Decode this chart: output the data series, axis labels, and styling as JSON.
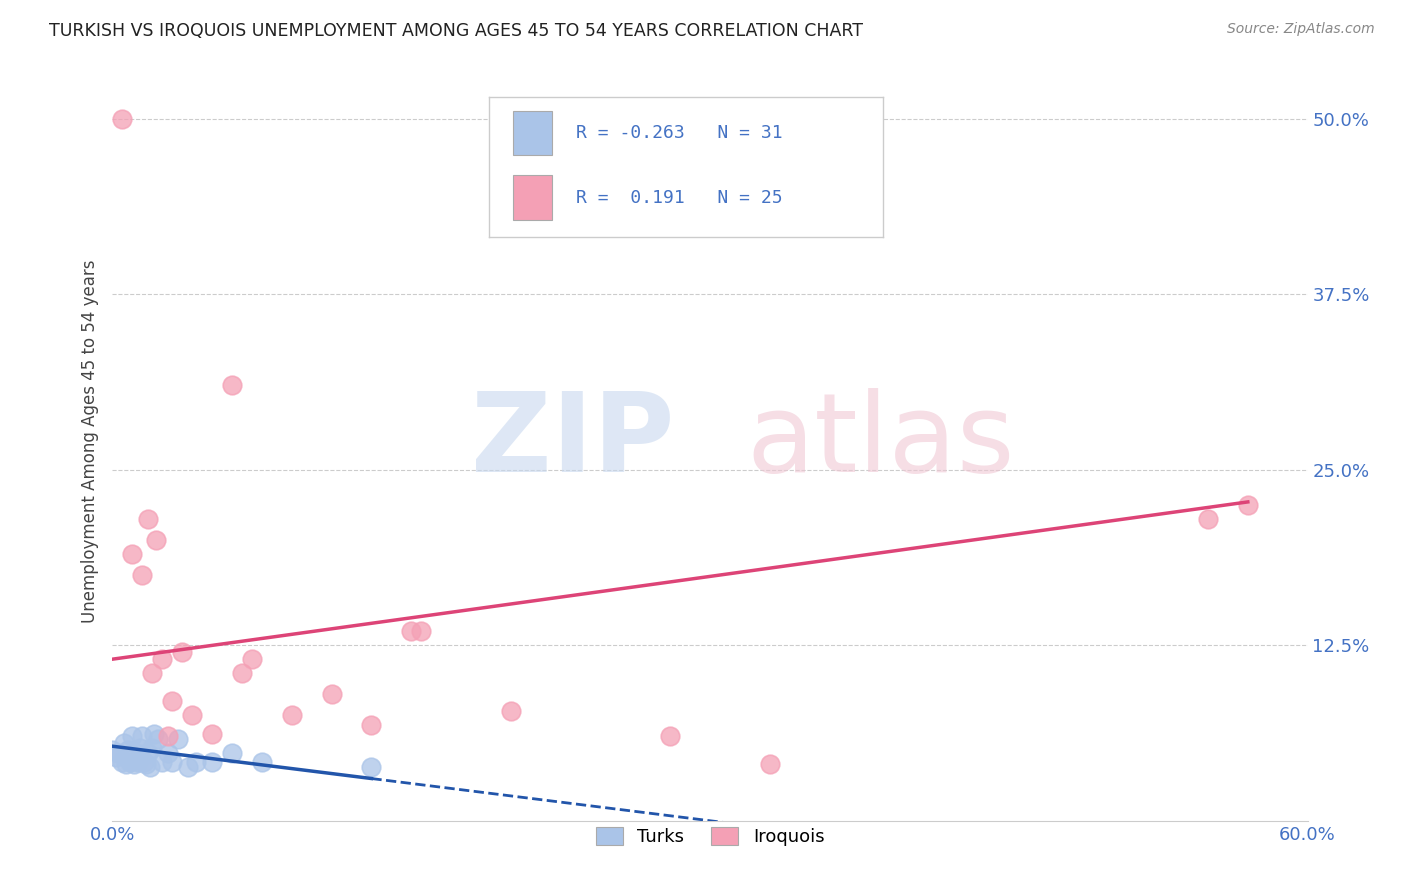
{
  "title": "TURKISH VS IROQUOIS UNEMPLOYMENT AMONG AGES 45 TO 54 YEARS CORRELATION CHART",
  "source": "Source: ZipAtlas.com",
  "ylabel": "Unemployment Among Ages 45 to 54 years",
  "xlim": [
    0.0,
    0.6
  ],
  "ylim": [
    0.0,
    0.54
  ],
  "xticks": [
    0.0,
    0.6
  ],
  "ytick_labels_right": [
    "50.0%",
    "37.5%",
    "25.0%",
    "12.5%"
  ],
  "ytick_vals_right": [
    0.5,
    0.375,
    0.25,
    0.125
  ],
  "xtick_labels": [
    "0.0%",
    "60.0%"
  ],
  "background_color": "#ffffff",
  "turks_color": "#aac4e8",
  "iroquois_color": "#f4a0b5",
  "turks_line_color": "#2255aa",
  "iroquois_line_color": "#dd4477",
  "R_turks": -0.263,
  "N_turks": 31,
  "R_iroquois": 0.191,
  "N_iroquois": 25,
  "turks_x": [
    0.0,
    0.002,
    0.003,
    0.005,
    0.006,
    0.007,
    0.008,
    0.009,
    0.01,
    0.011,
    0.012,
    0.013,
    0.014,
    0.015,
    0.016,
    0.017,
    0.018,
    0.019,
    0.02,
    0.021,
    0.023,
    0.025,
    0.028,
    0.03,
    0.033,
    0.038,
    0.042,
    0.05,
    0.06,
    0.075,
    0.13
  ],
  "turks_y": [
    0.05,
    0.045,
    0.048,
    0.042,
    0.055,
    0.04,
    0.05,
    0.042,
    0.06,
    0.04,
    0.048,
    0.042,
    0.052,
    0.06,
    0.042,
    0.04,
    0.048,
    0.038,
    0.052,
    0.062,
    0.058,
    0.042,
    0.048,
    0.042,
    0.058,
    0.038,
    0.042,
    0.042,
    0.048,
    0.042,
    0.038
  ],
  "iroquois_x": [
    0.005,
    0.01,
    0.015,
    0.018,
    0.02,
    0.022,
    0.025,
    0.028,
    0.03,
    0.035,
    0.04,
    0.05,
    0.06,
    0.065,
    0.07,
    0.09,
    0.11,
    0.13,
    0.15,
    0.155,
    0.2,
    0.28,
    0.33,
    0.55,
    0.57
  ],
  "iroquois_y": [
    0.5,
    0.19,
    0.175,
    0.215,
    0.105,
    0.2,
    0.115,
    0.06,
    0.085,
    0.12,
    0.075,
    0.062,
    0.31,
    0.105,
    0.115,
    0.075,
    0.09,
    0.068,
    0.135,
    0.135,
    0.078,
    0.06,
    0.04,
    0.215,
    0.225
  ],
  "turks_line_x0": 0.0,
  "turks_line_x1": 0.13,
  "turks_line_y0": 0.053,
  "turks_line_y1": 0.03,
  "iroquois_line_x0": 0.0,
  "iroquois_line_x1": 0.57,
  "iroquois_line_y0": 0.115,
  "iroquois_line_y1": 0.227
}
